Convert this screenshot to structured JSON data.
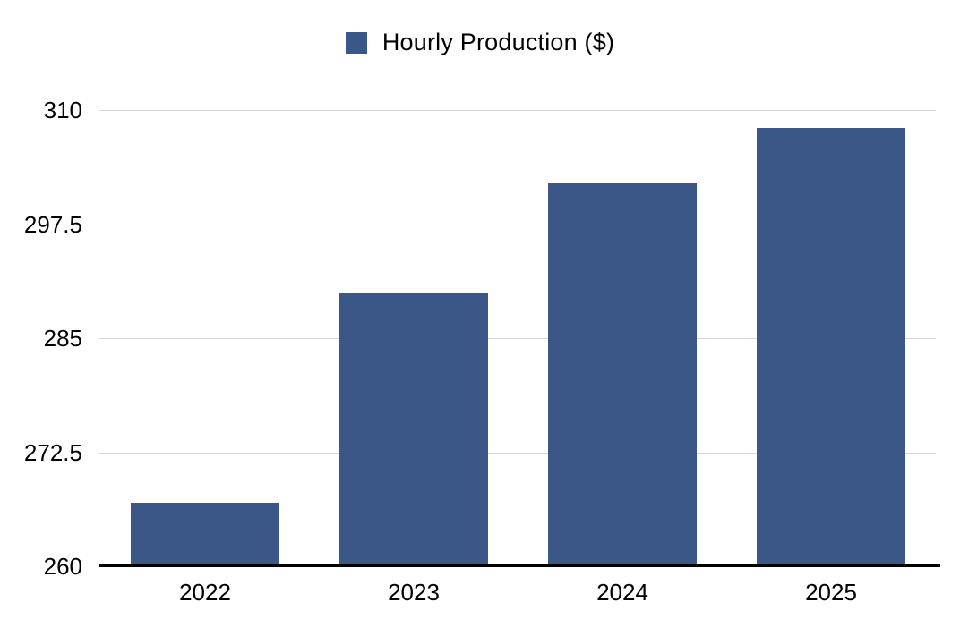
{
  "chart_data": {
    "type": "bar",
    "title": "",
    "xlabel": "",
    "ylabel": "",
    "legend": {
      "label": "Hourly Production ($)",
      "position": "top"
    },
    "categories": [
      "2022",
      "2023",
      "2024",
      "2025"
    ],
    "series": [
      {
        "name": "Hourly Production ($)",
        "values": [
          267,
          290,
          302,
          308
        ]
      }
    ],
    "ylim": [
      260,
      310
    ],
    "yticks": [
      260,
      272.5,
      285,
      297.5,
      310
    ],
    "grid": true,
    "colors": {
      "bar": "#3a5788",
      "gridline": "#d6d6d6",
      "axis_line": "#000000",
      "tick_label": "#000000",
      "background": "#ffffff"
    }
  }
}
